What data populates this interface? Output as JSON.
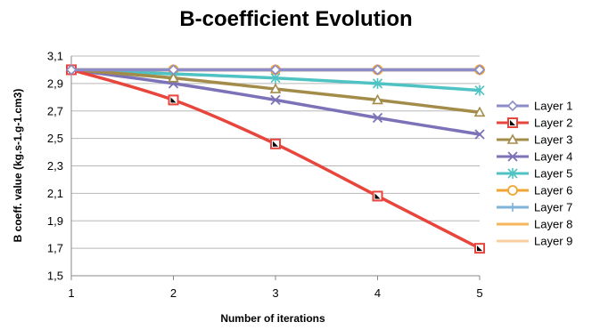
{
  "chart_data": {
    "type": "line",
    "title": "B-coefficient Evolution",
    "xlabel": "Number of iterations",
    "ylabel": "B coeff. value (kg.s-1.g-1.cm3)",
    "x": [
      1,
      2,
      3,
      4,
      5
    ],
    "xlim": [
      1,
      5
    ],
    "ylim": [
      1.5,
      3.1
    ],
    "yticks": [
      "1,5",
      "1,7",
      "1,9",
      "2,1",
      "2,3",
      "2,5",
      "2,7",
      "2,9",
      "3,1"
    ],
    "xticks": [
      "1",
      "2",
      "3",
      "4",
      "5"
    ],
    "grid": "horizontal",
    "legend_position": "right",
    "series": [
      {
        "name": "Layer 1",
        "values": [
          3.0,
          3.0,
          3.0,
          3.0,
          3.0
        ],
        "color": "#8c8cc8",
        "marker": "diamond"
      },
      {
        "name": "Layer 2",
        "values": [
          3.0,
          2.78,
          2.46,
          2.08,
          1.7
        ],
        "color": "#e8453c",
        "marker": "square"
      },
      {
        "name": "Layer 3",
        "values": [
          3.0,
          2.94,
          2.86,
          2.78,
          2.69
        ],
        "color": "#a38c4a",
        "marker": "triangle"
      },
      {
        "name": "Layer 4",
        "values": [
          3.0,
          2.9,
          2.78,
          2.65,
          2.53
        ],
        "color": "#7b72b8",
        "marker": "x"
      },
      {
        "name": "Layer 5",
        "values": [
          3.0,
          2.97,
          2.94,
          2.9,
          2.85
        ],
        "color": "#4fc3c3",
        "marker": "star"
      },
      {
        "name": "Layer 6",
        "values": [
          3.0,
          3.0,
          3.0,
          3.0,
          3.0
        ],
        "color": "#f2a431",
        "marker": "circle"
      },
      {
        "name": "Layer 7",
        "values": [
          3.0,
          3.0,
          3.0,
          3.0,
          3.0
        ],
        "color": "#7fb3d9",
        "marker": "plus"
      },
      {
        "name": "Layer 8",
        "values": [
          3.0,
          3.0,
          3.0,
          3.0,
          3.0
        ],
        "color": "#f7b45a",
        "marker": "none"
      },
      {
        "name": "Layer 9",
        "values": [
          3.0,
          3.0,
          3.0,
          3.0,
          3.0
        ],
        "color": "#f9cfa0",
        "marker": "none"
      }
    ]
  }
}
